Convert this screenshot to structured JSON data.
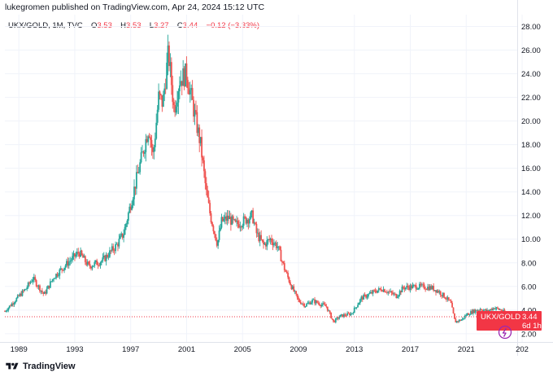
{
  "header": {
    "published_by": "lukegromen published on TradingView.com, Apr 24, 2024 15:12 UTC"
  },
  "legend": {
    "symbol": "UKX/GOLD, 1M, TVC",
    "open_label": "O",
    "open_value": "3.53",
    "high_label": "H",
    "high_value": "3.53",
    "low_label": "L",
    "low_value": "3.27",
    "close_label": "C",
    "close_value": "3.44",
    "change": "−0.12 (−3.33%)"
  },
  "price_tag": {
    "symbol": "UKX/GOLD",
    "price": "3.44",
    "countdown": "6d 1h",
    "color": "#f23645"
  },
  "footer": {
    "brand": "TradingView"
  },
  "colors": {
    "up": "#26a69a",
    "down": "#ef5350",
    "grid": "#f0f3fa",
    "axis_text": "#131722",
    "last_price_line": "#f23645",
    "icon": "#9c27b0"
  },
  "chart_data": {
    "type": "candlestick",
    "interval": "1M",
    "ylim": [
      1.3,
      29.0
    ],
    "xlim": [
      1988.0,
      2024.65
    ],
    "y_ticks": [
      "28.00",
      "26.00",
      "24.00",
      "22.00",
      "20.00",
      "18.00",
      "16.00",
      "14.00",
      "12.00",
      "10.00",
      "8.00",
      "6.00",
      "4.00",
      "2.00"
    ],
    "x_ticks": [
      "1989",
      "1993",
      "1997",
      "2001",
      "2005",
      "2009",
      "2013",
      "2017",
      "2021",
      "202"
    ],
    "last_price": 3.44,
    "price_path": [
      [
        1988.0,
        3.9
      ],
      [
        1989.5,
        5.8
      ],
      [
        1990.0,
        6.7
      ],
      [
        1990.8,
        5.3
      ],
      [
        1991.5,
        6.8
      ],
      [
        1992.5,
        8.0
      ],
      [
        1993.3,
        8.9
      ],
      [
        1994.0,
        7.7
      ],
      [
        1995.0,
        8.2
      ],
      [
        1996.0,
        9.5
      ],
      [
        1996.5,
        10.5
      ],
      [
        1997.5,
        15.5
      ],
      [
        1998.3,
        19.5
      ],
      [
        1998.6,
        17.0
      ],
      [
        1999.0,
        22.0
      ],
      [
        1999.3,
        21.5
      ],
      [
        1999.7,
        25.8
      ],
      [
        2000.1,
        21.0
      ],
      [
        2000.5,
        23.5
      ],
      [
        2001.0,
        24.0
      ],
      [
        2001.5,
        21.0
      ],
      [
        2002.0,
        18.0
      ],
      [
        2002.4,
        14.0
      ],
      [
        2002.7,
        12.0
      ],
      [
        2003.2,
        9.6
      ],
      [
        2003.5,
        11.5
      ],
      [
        2004.0,
        11.8
      ],
      [
        2004.5,
        11.2
      ],
      [
        2005.0,
        11.5
      ],
      [
        2005.7,
        12.0
      ],
      [
        2006.0,
        10.5
      ],
      [
        2006.5,
        9.5
      ],
      [
        2007.0,
        10.0
      ],
      [
        2007.5,
        9.4
      ],
      [
        2008.0,
        7.5
      ],
      [
        2008.5,
        6.0
      ],
      [
        2009.0,
        4.8
      ],
      [
        2009.5,
        4.4
      ],
      [
        2010.0,
        4.8
      ],
      [
        2011.0,
        4.3
      ],
      [
        2011.5,
        3.0
      ],
      [
        2012.0,
        3.5
      ],
      [
        2012.8,
        3.7
      ],
      [
        2013.5,
        5.0
      ],
      [
        2014.5,
        5.6
      ],
      [
        2015.0,
        5.8
      ],
      [
        2016.0,
        5.2
      ],
      [
        2016.5,
        5.9
      ],
      [
        2017.5,
        6.0
      ],
      [
        2018.5,
        5.9
      ],
      [
        2019.0,
        5.6
      ],
      [
        2019.5,
        5.1
      ],
      [
        2019.9,
        4.6
      ],
      [
        2020.2,
        3.0
      ],
      [
        2020.7,
        3.2
      ],
      [
        2021.0,
        3.6
      ],
      [
        2021.5,
        3.9
      ],
      [
        2022.0,
        4.1
      ],
      [
        2022.5,
        3.9
      ],
      [
        2023.0,
        4.2
      ],
      [
        2023.5,
        4.0
      ],
      [
        2024.0,
        3.6
      ],
      [
        2024.3,
        3.44
      ]
    ]
  }
}
